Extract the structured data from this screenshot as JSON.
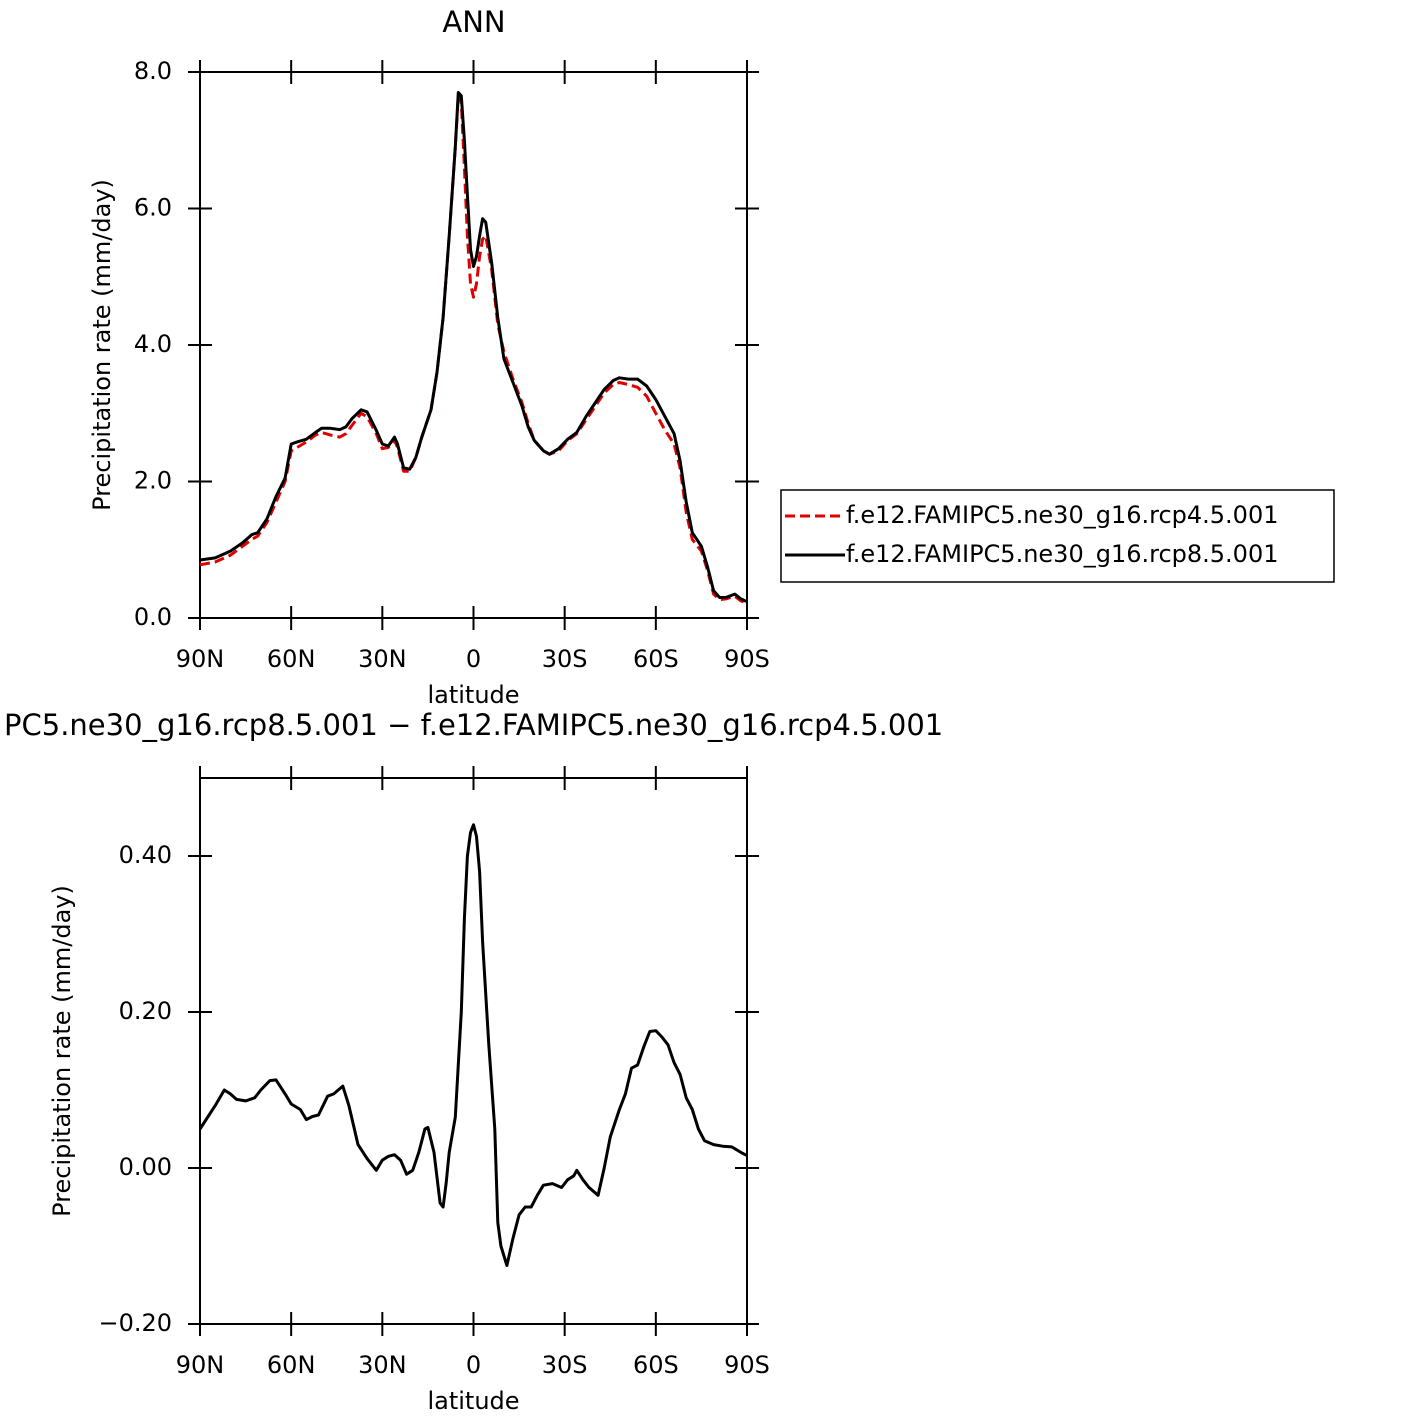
{
  "chart_data": [
    {
      "type": "line",
      "title": "ANN",
      "xlabel": "latitude",
      "ylabel": "Precipitation rate (mm/day)",
      "x": [
        90,
        85,
        80,
        76,
        73,
        71,
        68,
        65,
        62,
        60,
        58,
        55,
        52,
        50,
        47,
        44,
        42,
        40,
        37,
        35,
        32,
        30,
        28,
        26,
        25,
        23,
        21,
        19,
        17,
        14,
        12,
        10,
        8,
        6,
        5,
        4,
        3,
        2,
        1,
        0,
        -1,
        -2,
        -3,
        -4,
        -6,
        -8,
        -10,
        -13,
        -16,
        -18,
        -20,
        -23,
        -25,
        -28,
        -31,
        -34,
        -37,
        -40,
        -43,
        -46,
        -48,
        -51,
        -54,
        -57,
        -60,
        -63,
        -66,
        -68,
        -70,
        -72,
        -75,
        -77,
        -79,
        -81,
        -83,
        -86,
        -88,
        -90
      ],
      "xlim": [
        90,
        -90
      ],
      "xticks": [
        {
          "value": 90,
          "label": "90N"
        },
        {
          "value": 60,
          "label": "60N"
        },
        {
          "value": 30,
          "label": "30N"
        },
        0,
        {
          "value": -30,
          "label": "30S"
        },
        {
          "value": -60,
          "label": "60S"
        },
        {
          "value": -90,
          "label": "90S"
        }
      ],
      "ylim": [
        0,
        8
      ],
      "yticks": [
        {
          "value": 0,
          "label": "0.0"
        },
        {
          "value": 2,
          "label": "2.0"
        },
        {
          "value": 4,
          "label": "4.0"
        },
        {
          "value": 6,
          "label": "6.0"
        },
        {
          "value": 8,
          "label": "8.0"
        }
      ],
      "legend": "right",
      "series": [
        {
          "name": "f.e12.FAMIPC5.ne30_g16.rcp4.5.001",
          "color": "#e00000",
          "line_style": "dashed",
          "values": [
            0.78,
            0.82,
            0.92,
            1.05,
            1.15,
            1.2,
            1.4,
            1.7,
            2.0,
            2.45,
            2.5,
            2.58,
            2.68,
            2.72,
            2.68,
            2.65,
            2.7,
            2.82,
            3.0,
            2.95,
            2.7,
            2.48,
            2.5,
            2.6,
            2.5,
            2.15,
            2.15,
            2.35,
            2.65,
            3.05,
            3.6,
            4.4,
            5.6,
            6.9,
            7.65,
            7.55,
            6.6,
            5.6,
            4.9,
            4.7,
            4.9,
            5.3,
            5.55,
            5.6,
            5.1,
            4.3,
            3.9,
            3.5,
            3.15,
            2.85,
            2.6,
            2.45,
            2.4,
            2.45,
            2.6,
            2.7,
            2.9,
            3.1,
            3.3,
            3.42,
            3.45,
            3.42,
            3.38,
            3.25,
            3.0,
            2.75,
            2.55,
            2.2,
            1.55,
            1.15,
            0.98,
            0.7,
            0.35,
            0.27,
            0.28,
            0.32,
            0.25,
            0.22
          ]
        },
        {
          "name": "f.e12.FAMIPC5.ne30_g16.rcp8.5.001",
          "color": "#000000",
          "line_style": "solid",
          "values": [
            0.85,
            0.88,
            0.98,
            1.1,
            1.22,
            1.25,
            1.45,
            1.78,
            2.05,
            2.55,
            2.58,
            2.62,
            2.72,
            2.78,
            2.78,
            2.76,
            2.8,
            2.92,
            3.05,
            3.02,
            2.75,
            2.55,
            2.52,
            2.65,
            2.55,
            2.2,
            2.18,
            2.35,
            2.65,
            3.05,
            3.6,
            4.4,
            5.6,
            6.9,
            7.7,
            7.65,
            7.0,
            6.2,
            5.4,
            5.15,
            5.3,
            5.6,
            5.85,
            5.8,
            5.2,
            4.4,
            3.8,
            3.45,
            3.1,
            2.8,
            2.6,
            2.45,
            2.4,
            2.48,
            2.62,
            2.72,
            2.95,
            3.15,
            3.35,
            3.48,
            3.52,
            3.5,
            3.5,
            3.4,
            3.2,
            2.95,
            2.7,
            2.3,
            1.7,
            1.25,
            1.05,
            0.75,
            0.4,
            0.3,
            0.3,
            0.35,
            0.28,
            0.24
          ]
        }
      ]
    },
    {
      "type": "line",
      "title": "PC5.ne30_g16.rcp8.5.001 − f.e12.FAMIPC5.ne30_g16.rcp4.5.001",
      "xlabel": "latitude",
      "ylabel": "Precipitation rate (mm/day)",
      "x": [
        90,
        85,
        82,
        80,
        78,
        75,
        72,
        70,
        67,
        65,
        62,
        60,
        57,
        55,
        53,
        51,
        48,
        46,
        43,
        41,
        38,
        35,
        32,
        30,
        28,
        26,
        24,
        22,
        20,
        18,
        16,
        15,
        13,
        11,
        10,
        9,
        8,
        6,
        4,
        3,
        2,
        1,
        0,
        -1,
        -2,
        -3,
        -5,
        -7,
        -8,
        -9,
        -11,
        -13,
        -15,
        -17,
        -19,
        -21,
        -23,
        -26,
        -29,
        -31,
        -33,
        -34,
        -36,
        -38,
        -41,
        -43,
        -45,
        -48,
        -50,
        -52,
        -54,
        -56,
        -58,
        -60,
        -62,
        -64,
        -66,
        -68,
        -70,
        -72,
        -74,
        -76,
        -79,
        -82,
        -85,
        -88,
        -90
      ],
      "values": [
        0.05,
        0.08,
        0.1,
        0.095,
        0.088,
        0.086,
        0.09,
        0.1,
        0.112,
        0.113,
        0.095,
        0.082,
        0.075,
        0.062,
        0.066,
        0.068,
        0.092,
        0.095,
        0.105,
        0.08,
        0.03,
        0.012,
        -0.003,
        0.01,
        0.015,
        0.017,
        0.01,
        -0.008,
        -0.003,
        0.02,
        0.05,
        0.052,
        0.02,
        -0.045,
        -0.05,
        -0.02,
        0.02,
        0.065,
        0.2,
        0.32,
        0.4,
        0.43,
        0.44,
        0.425,
        0.38,
        0.29,
        0.16,
        0.05,
        -0.07,
        -0.1,
        -0.125,
        -0.09,
        -0.06,
        -0.05,
        -0.05,
        -0.035,
        -0.022,
        -0.02,
        -0.025,
        -0.015,
        -0.01,
        -0.003,
        -0.015,
        -0.025,
        -0.035,
        0.0,
        0.04,
        0.075,
        0.095,
        0.128,
        0.132,
        0.155,
        0.175,
        0.176,
        0.168,
        0.158,
        0.135,
        0.12,
        0.09,
        0.075,
        0.05,
        0.035,
        0.03,
        0.028,
        0.027,
        0.02,
        0.016
      ],
      "color": "#000000",
      "xlim": [
        90,
        -90
      ],
      "xticks": [
        {
          "value": 90,
          "label": "90N"
        },
        {
          "value": 60,
          "label": "60N"
        },
        {
          "value": 30,
          "label": "30N"
        },
        0,
        {
          "value": -30,
          "label": "30S"
        },
        {
          "value": -60,
          "label": "60S"
        },
        {
          "value": -90,
          "label": "90S"
        }
      ],
      "ylim": [
        -0.2,
        0.5
      ],
      "yticks": [
        {
          "value": -0.2,
          "label": "−0.20"
        },
        {
          "value": 0,
          "label": "0.00"
        },
        {
          "value": 0.2,
          "label": "0.20"
        },
        {
          "value": 0.4,
          "label": "0.40"
        }
      ]
    }
  ]
}
